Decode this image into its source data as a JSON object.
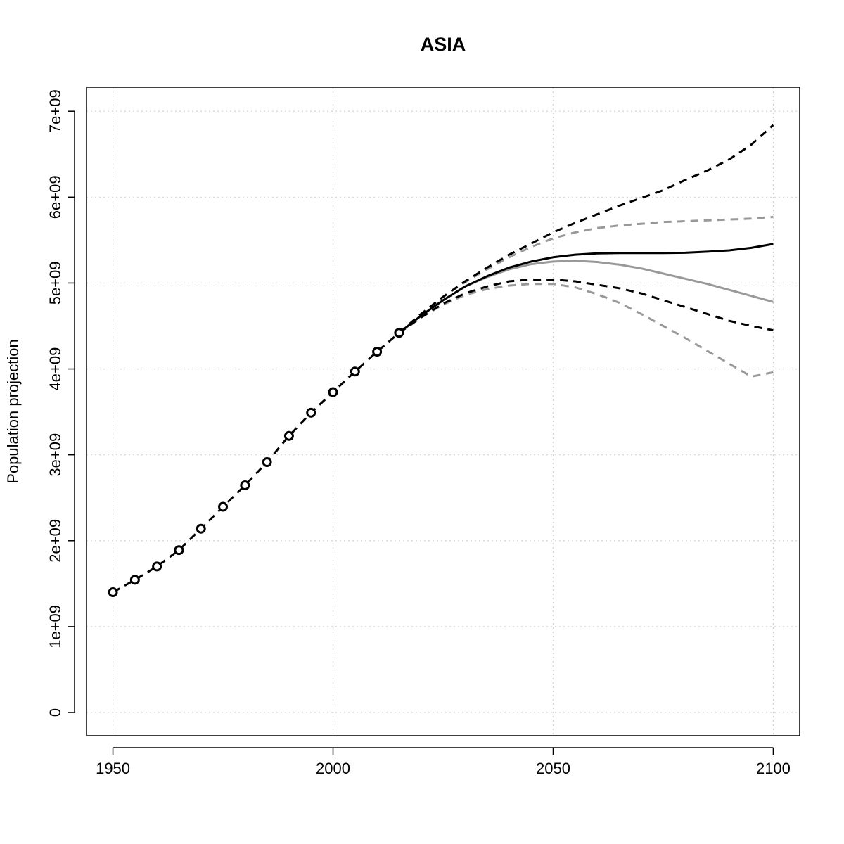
{
  "chart_data": {
    "type": "line",
    "title": "ASIA",
    "xlabel": "",
    "ylabel": "Population projection",
    "xlim": [
      1944,
      2106
    ],
    "ylim": [
      -270000000,
      7280000000
    ],
    "grid": true,
    "x_ticks": [
      1950,
      2000,
      2050,
      2100
    ],
    "x_tick_labels": [
      "1950",
      "2000",
      "2050",
      "2100"
    ],
    "y_ticks": [
      0,
      1000000000,
      2000000000,
      3000000000,
      4000000000,
      5000000000,
      6000000000,
      7000000000
    ],
    "y_tick_labels": [
      "0",
      "1e+09",
      "2e+09",
      "3e+09",
      "4e+09",
      "5e+09",
      "6e+09",
      "7e+09"
    ],
    "series": [
      {
        "style": "observed",
        "color": "#000000",
        "dash": "dashed",
        "markers": "circle",
        "x": [
          1950,
          1955,
          1960,
          1965,
          1970,
          1975,
          1980,
          1985,
          1990,
          1995,
          2000,
          2005,
          2010,
          2015
        ],
        "values": [
          1400000000,
          1545000000,
          1700000000,
          1890000000,
          2140000000,
          2395000000,
          2645000000,
          2915000000,
          3220000000,
          3490000000,
          3730000000,
          3970000000,
          4200000000,
          4420000000
        ]
      },
      {
        "style": "median",
        "color": "#000000",
        "dash": "solid",
        "x": [
          2015,
          2020,
          2025,
          2030,
          2035,
          2040,
          2045,
          2050,
          2055,
          2060,
          2065,
          2070,
          2075,
          2080,
          2085,
          2090,
          2095,
          2100
        ],
        "values": [
          4420000000,
          4620000000,
          4800000000,
          4960000000,
          5080000000,
          5180000000,
          5250000000,
          5300000000,
          5330000000,
          5345000000,
          5350000000,
          5350000000,
          5350000000,
          5352000000,
          5365000000,
          5380000000,
          5410000000,
          5455000000
        ]
      },
      {
        "style": "upper-80",
        "color": "#000000",
        "dash": "dashed",
        "x": [
          2015,
          2020,
          2025,
          2030,
          2035,
          2040,
          2045,
          2050,
          2055,
          2060,
          2065,
          2070,
          2075,
          2080,
          2085,
          2090,
          2095,
          2100
        ],
        "values": [
          4420000000,
          4640000000,
          4840000000,
          5020000000,
          5180000000,
          5330000000,
          5460000000,
          5590000000,
          5700000000,
          5800000000,
          5900000000,
          5990000000,
          6080000000,
          6200000000,
          6310000000,
          6440000000,
          6610000000,
          6840000000
        ]
      },
      {
        "style": "lower-80",
        "color": "#000000",
        "dash": "dashed",
        "x": [
          2015,
          2020,
          2025,
          2030,
          2035,
          2040,
          2045,
          2050,
          2055,
          2060,
          2065,
          2070,
          2075,
          2080,
          2085,
          2090,
          2095,
          2100
        ],
        "values": [
          4420000000,
          4600000000,
          4760000000,
          4880000000,
          4960000000,
          5020000000,
          5040000000,
          5040000000,
          5020000000,
          4980000000,
          4940000000,
          4880000000,
          4800000000,
          4720000000,
          4640000000,
          4560000000,
          4500000000,
          4450000000
        ]
      },
      {
        "style": "median-2",
        "color": "#999999",
        "dash": "solid",
        "x": [
          2015,
          2020,
          2025,
          2030,
          2035,
          2040,
          2045,
          2050,
          2055,
          2060,
          2065,
          2070,
          2075,
          2080,
          2085,
          2090,
          2095,
          2100
        ],
        "values": [
          4420000000,
          4620000000,
          4800000000,
          4960000000,
          5070000000,
          5160000000,
          5220000000,
          5250000000,
          5260000000,
          5245000000,
          5215000000,
          5170000000,
          5110000000,
          5050000000,
          4990000000,
          4920000000,
          4850000000,
          4780000000
        ]
      },
      {
        "style": "upper-95",
        "color": "#999999",
        "dash": "dashed",
        "x": [
          2015,
          2020,
          2025,
          2030,
          2035,
          2040,
          2045,
          2050,
          2055,
          2060,
          2065,
          2070,
          2075,
          2080,
          2085,
          2090,
          2095,
          2100
        ],
        "values": [
          4420000000,
          4640000000,
          4840000000,
          5010000000,
          5160000000,
          5300000000,
          5420000000,
          5520000000,
          5590000000,
          5640000000,
          5670000000,
          5690000000,
          5710000000,
          5720000000,
          5730000000,
          5740000000,
          5750000000,
          5770000000
        ]
      },
      {
        "style": "lower-95",
        "color": "#999999",
        "dash": "dashed",
        "x": [
          2015,
          2020,
          2025,
          2030,
          2035,
          2040,
          2045,
          2050,
          2055,
          2060,
          2065,
          2070,
          2075,
          2080,
          2085,
          2090,
          2095,
          2100
        ],
        "values": [
          4420000000,
          4600000000,
          4750000000,
          4860000000,
          4930000000,
          4970000000,
          4990000000,
          4990000000,
          4950000000,
          4870000000,
          4770000000,
          4640000000,
          4500000000,
          4360000000,
          4210000000,
          4060000000,
          3910000000,
          3960000000
        ]
      }
    ]
  }
}
